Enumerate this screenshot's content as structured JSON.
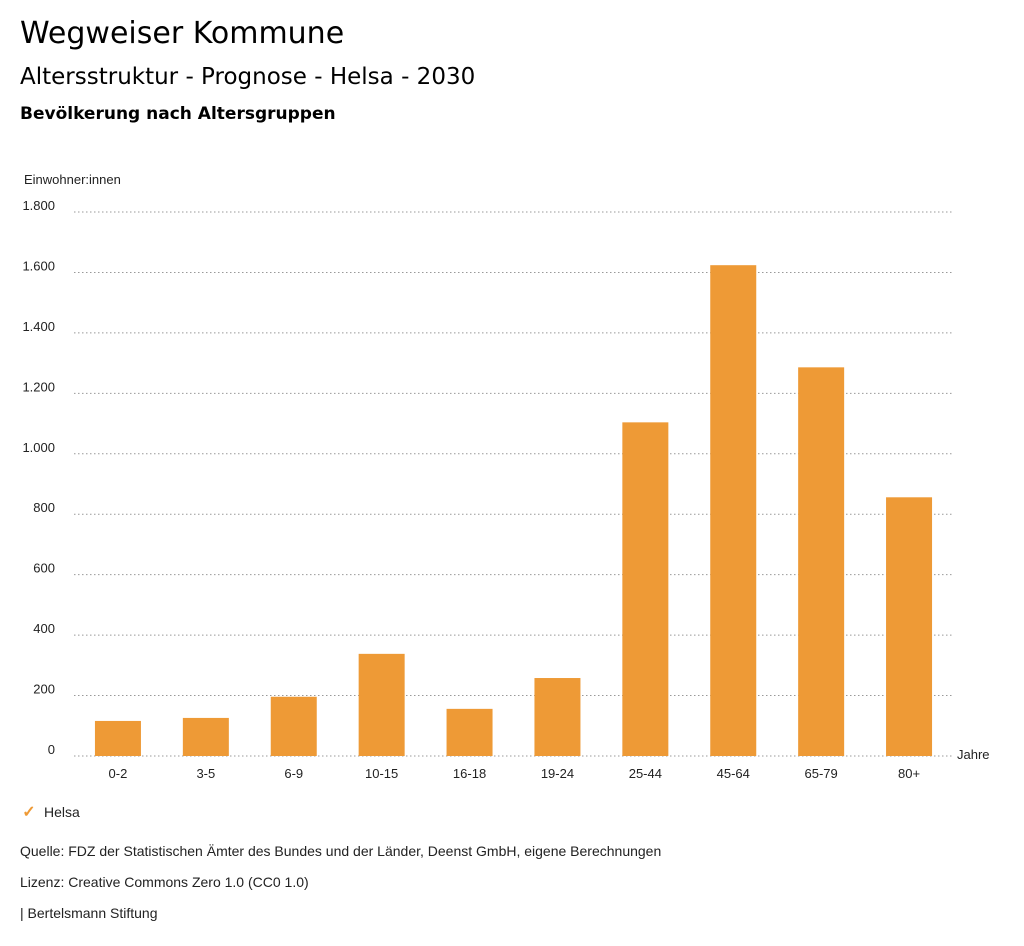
{
  "header": {
    "title": "Wegweiser Kommune",
    "subtitle": "Altersstruktur - Prognose - Helsa - 2030",
    "chart_heading": "Bevölkerung nach Altersgruppen"
  },
  "legend": {
    "icon": "check-icon",
    "label": "Helsa"
  },
  "footer": {
    "source": "Quelle: FDZ der Statistischen Ämter des Bundes und der Länder, Deenst GmbH, eigene Berechnungen",
    "license": "Lizenz: Creative Commons Zero 1.0 (CC0 1.0)",
    "publisher": "| Bertelsmann Stiftung"
  },
  "colors": {
    "bar": "#ee9a36",
    "grid": "#999999"
  },
  "chart_data": {
    "type": "bar",
    "title": "Bevölkerung nach Altersgruppen",
    "ylabel": "Einwohner:innen",
    "xlabel": "Jahre",
    "categories": [
      "0-2",
      "3-5",
      "6-9",
      "10-15",
      "16-18",
      "19-24",
      "25-44",
      "45-64",
      "65-79",
      "80+"
    ],
    "series": [
      {
        "name": "Helsa",
        "values": [
          116,
          126,
          196,
          338,
          156,
          258,
          1104,
          1624,
          1286,
          856
        ]
      }
    ],
    "ylim": [
      0,
      1800
    ],
    "yticks": [
      0,
      200,
      400,
      600,
      800,
      1000,
      1200,
      1400,
      1600,
      1800
    ],
    "ytick_labels": [
      "0",
      "200",
      "400",
      "600",
      "800",
      "1.000",
      "1.200",
      "1.400",
      "1.600",
      "1.800"
    ],
    "grid": true,
    "legend_position": "bottom-left"
  }
}
